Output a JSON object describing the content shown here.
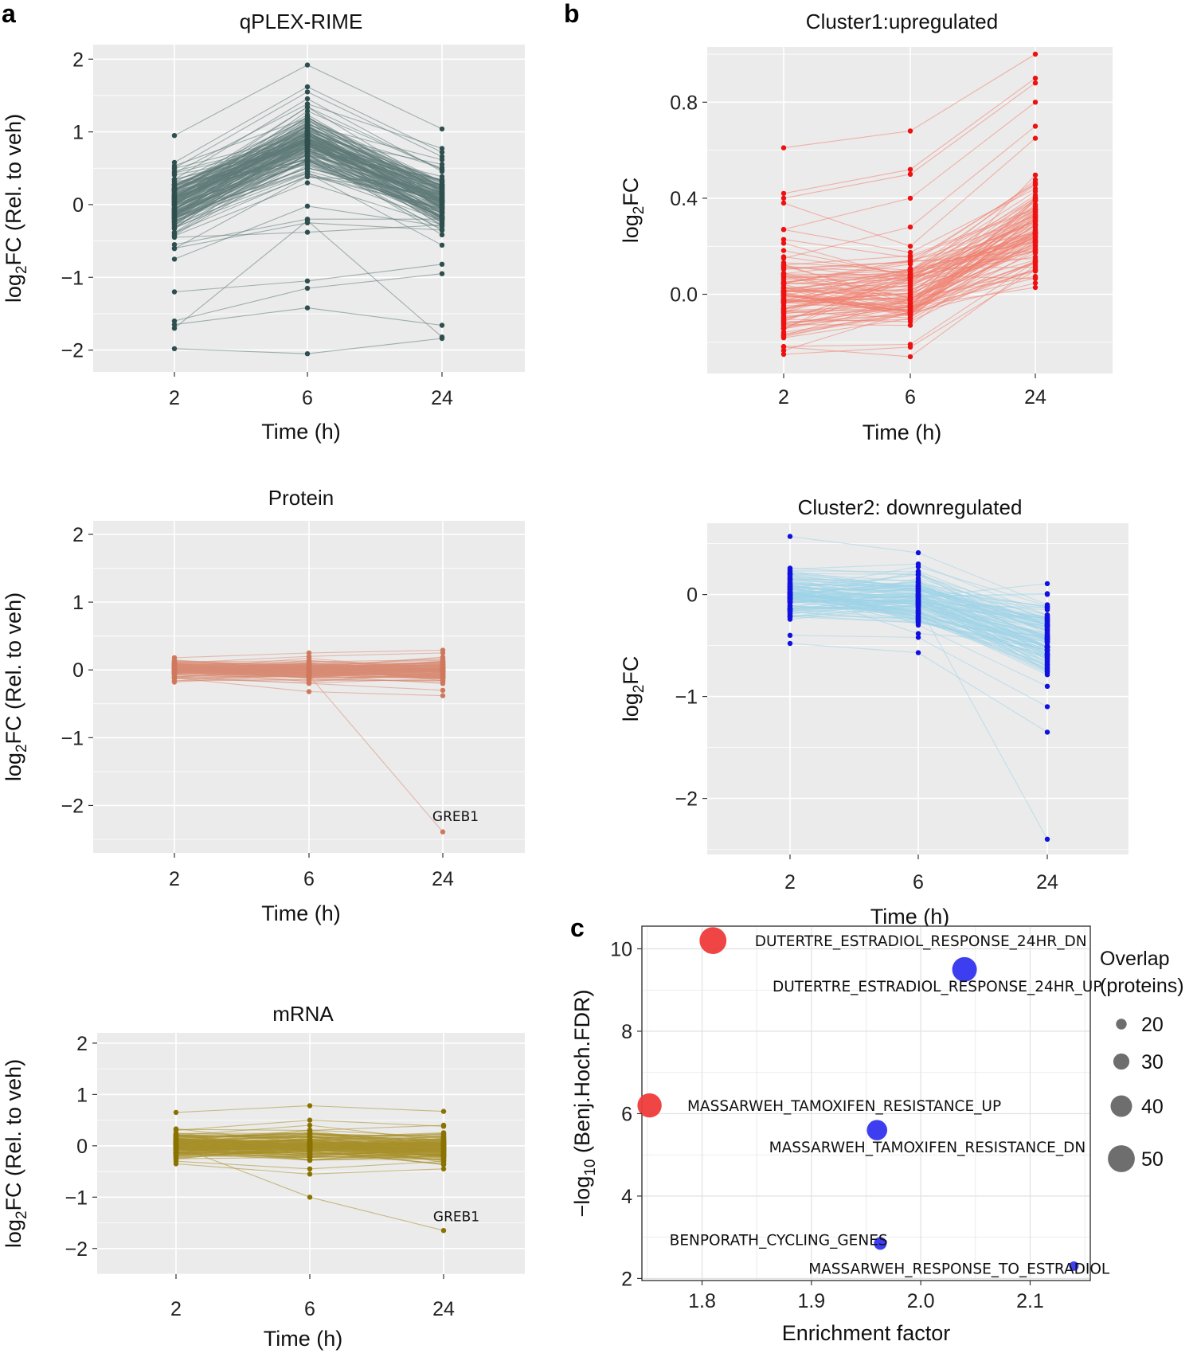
{
  "chart_data": [
    {
      "id": "qplex",
      "panel": "a",
      "type": "line",
      "title": "qPLEX-RIME",
      "xlabel": "Time (h)",
      "ylabel": "log2FC (Rel. to veh)",
      "ylim": [
        -2.3,
        2.2
      ],
      "yticks": [
        -2,
        -1,
        0,
        1,
        2
      ],
      "categories": [
        "2",
        "6",
        "24"
      ],
      "line_color": "#5f7a78",
      "point_color": "#2f4f4f",
      "n_background_lines": 160,
      "background_pattern": {
        "t2_mean": 0.0,
        "t2_sd": 0.22,
        "t6_mean": 0.85,
        "t6_sd": 0.22,
        "t24_mean": 0.05,
        "t24_sd": 0.2
      },
      "lines": [
        [
          0.95,
          1.92,
          1.04
        ],
        [
          0.58,
          1.62,
          0.72
        ],
        [
          0.5,
          1.55,
          0.66
        ],
        [
          -0.75,
          -0.02,
          -0.3
        ],
        [
          -0.55,
          -0.2,
          -0.2
        ],
        [
          -0.6,
          -0.25,
          -0.35
        ],
        [
          -0.45,
          -0.38,
          -0.28
        ],
        [
          -1.2,
          -1.05,
          -0.82
        ],
        [
          -1.6,
          -1.15,
          -0.95
        ],
        [
          -1.65,
          -1.42,
          -1.66
        ],
        [
          -1.7,
          -0.22,
          -1.82
        ],
        [
          -1.98,
          -2.05,
          -1.84
        ]
      ]
    },
    {
      "id": "protein",
      "panel": "a",
      "type": "line",
      "title": "Protein",
      "xlabel": "Time (h)",
      "ylabel": "log2FC (Rel. to veh)",
      "ylim": [
        -2.7,
        2.2
      ],
      "yticks": [
        -2,
        -1,
        0,
        1,
        2
      ],
      "categories": [
        "2",
        "6",
        "24"
      ],
      "line_color": "#d98c74",
      "point_color": "#d0785c",
      "n_background_lines": 140,
      "background_pattern": {
        "t2_mean": 0.0,
        "t2_sd": 0.06,
        "t6_mean": 0.0,
        "t6_sd": 0.07,
        "t24_mean": 0.0,
        "t24_sd": 0.08
      },
      "lines": [
        [
          0.18,
          0.25,
          0.29
        ],
        [
          -0.12,
          -0.32,
          -0.38
        ],
        [
          0.1,
          0.2,
          0.25
        ],
        [
          -0.1,
          -0.2,
          -0.3
        ],
        [
          0.0,
          -0.08,
          -2.39
        ]
      ],
      "annotation": {
        "text": "GREB1",
        "x": "24",
        "y": -2.23
      }
    },
    {
      "id": "mrna",
      "panel": "a",
      "type": "line",
      "title": "mRNA",
      "xlabel": "Time (h)",
      "ylabel": "log2FC (Rel. to veh)",
      "ylim": [
        -2.5,
        2.2
      ],
      "yticks": [
        -2,
        -1,
        0,
        1,
        2
      ],
      "categories": [
        "2",
        "6",
        "24"
      ],
      "line_color": "#a8902a",
      "point_color": "#8a7200",
      "n_background_lines": 150,
      "background_pattern": {
        "t2_mean": 0.0,
        "t2_sd": 0.12,
        "t6_mean": 0.0,
        "t6_sd": 0.14,
        "t24_mean": -0.05,
        "t24_sd": 0.14
      },
      "lines": [
        [
          0.65,
          0.78,
          0.67
        ],
        [
          0.3,
          0.5,
          0.38
        ],
        [
          -0.35,
          -0.55,
          -0.45
        ],
        [
          0.2,
          0.4,
          0.1
        ],
        [
          -0.3,
          -0.45,
          -0.3
        ],
        [
          0.32,
          0.3,
          0.4
        ],
        [
          0.0,
          -1.0,
          -1.65
        ]
      ],
      "annotation": {
        "text": "GREB1",
        "x": "24",
        "y": -1.47
      }
    },
    {
      "id": "cluster1",
      "panel": "b",
      "type": "line",
      "title": "Cluster1:upregulated",
      "xlabel": "Time (h)",
      "ylabel": "log2FC",
      "ylim": [
        -0.33,
        1.03
      ],
      "yticks": [
        0.0,
        0.4,
        0.8
      ],
      "ytick_labels": [
        "0.0",
        "0.4",
        "0.8"
      ],
      "categories": [
        "2",
        "6",
        "24"
      ],
      "line_color": "#f08070",
      "point_color": "#ee1111",
      "n_background_lines": 110,
      "background_pattern": {
        "t2_mean": 0.0,
        "t2_sd": 0.1,
        "t6_mean": 0.02,
        "t6_sd": 0.09,
        "t24_mean": 0.28,
        "t24_sd": 0.12
      },
      "lines": [
        [
          0.61,
          0.68,
          1.0
        ],
        [
          0.42,
          0.52,
          0.9
        ],
        [
          0.4,
          0.5,
          0.88
        ],
        [
          0.27,
          0.4,
          0.8
        ],
        [
          0.15,
          0.28,
          0.7
        ],
        [
          -0.25,
          -0.22,
          0.1
        ],
        [
          -0.22,
          -0.26,
          0.12
        ],
        [
          0.38,
          0.2,
          0.65
        ]
      ]
    },
    {
      "id": "cluster2",
      "panel": "b",
      "type": "line",
      "title": "Cluster2: downregulated",
      "xlabel": "Time (h)",
      "ylabel": "log2FC",
      "ylim": [
        -2.55,
        0.7
      ],
      "yticks": [
        -2,
        -1,
        0
      ],
      "categories": [
        "2",
        "6",
        "24"
      ],
      "line_color": "#9fd3e8",
      "point_color": "#1010e0",
      "n_background_lines": 130,
      "background_pattern": {
        "t2_mean": 0.0,
        "t2_sd": 0.12,
        "t6_mean": -0.05,
        "t6_sd": 0.13,
        "t24_mean": -0.45,
        "t24_sd": 0.18
      },
      "lines": [
        [
          0.57,
          0.41,
          -0.1
        ],
        [
          0.25,
          0.3,
          -0.2
        ],
        [
          -0.48,
          -0.57,
          -1.35
        ],
        [
          -0.4,
          -0.42,
          -1.1
        ],
        [
          0.0,
          -0.1,
          -2.4
        ],
        [
          0.2,
          -0.3,
          -0.9
        ]
      ]
    },
    {
      "id": "enrichment",
      "panel": "c",
      "type": "scatter",
      "xlabel": "Enrichment factor",
      "ylabel": "−log10 (Benj.Hoch.FDR)",
      "xlim": [
        1.745,
        2.155
      ],
      "ylim": [
        1.95,
        10.55
      ],
      "xticks": [
        1.8,
        1.9,
        2.0,
        2.1
      ],
      "xtick_labels": [
        "1.8",
        "1.9",
        "2.0",
        "2.1"
      ],
      "yticks": [
        2,
        4,
        6,
        8,
        10
      ],
      "points": [
        {
          "label": "DUTERTRE_ESTRADIOL_RESPONSE_24HR_DN",
          "x": 1.81,
          "y": 10.2,
          "size": 50,
          "direction": "up",
          "color": "#ef3b3b",
          "label_pos": [
            2.0,
            10.2
          ]
        },
        {
          "label": "DUTERTRE_ESTRADIOL_RESPONSE_24HR_UP",
          "x": 2.04,
          "y": 9.5,
          "size": 46,
          "direction": "down",
          "color": "#3434f0",
          "label_pos": [
            2.015,
            9.1
          ]
        },
        {
          "label": "MASSARWEH_TAMOXIFEN_RESISTANCE_UP",
          "x": 1.752,
          "y": 6.2,
          "size": 45,
          "direction": "up",
          "color": "#ef3b3b",
          "label_pos": [
            1.93,
            6.2
          ]
        },
        {
          "label": "MASSARWEH_TAMOXIFEN_RESISTANCE_DN",
          "x": 1.96,
          "y": 5.6,
          "size": 38,
          "direction": "down",
          "color": "#3434f0",
          "label_pos": [
            2.006,
            5.2
          ]
        },
        {
          "label": "BENPORATH_CYCLING_GENES",
          "x": 1.963,
          "y": 2.85,
          "size": 24,
          "direction": "down",
          "color": "#3434f0",
          "label_pos": [
            1.87,
            2.95
          ]
        },
        {
          "label": "MASSARWEH_RESPONSE_TO_ESTRADIOL",
          "x": 2.14,
          "y": 2.3,
          "size": 18,
          "direction": "down",
          "color": "#3434f0",
          "label_pos": [
            2.035,
            2.25
          ]
        }
      ],
      "legend": {
        "title_line1": "Overlap",
        "title_line2": "(proteins)",
        "sizes": [
          20,
          30,
          40,
          50
        ],
        "labels": [
          "20",
          "30",
          "40",
          "50"
        ],
        "placement": "right"
      }
    }
  ],
  "panel_letters": {
    "a": "a",
    "b": "b",
    "c": "c"
  }
}
